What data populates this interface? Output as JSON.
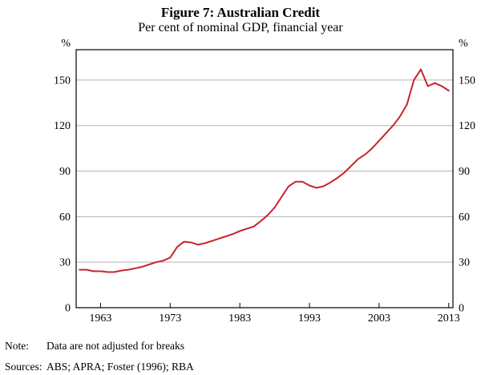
{
  "figure": {
    "title": "Figure 7: Australian Credit",
    "subtitle": "Per cent of nominal GDP, financial year"
  },
  "footer": {
    "note_label": "Note:",
    "note_text": "Data are not adjusted for breaks",
    "sources_label": "Sources:",
    "sources_text": "ABS; APRA; Foster (1996); RBA"
  },
  "chart_data": {
    "type": "line",
    "title": "Figure 7: Australian Credit",
    "subtitle": "Per cent of nominal GDP, financial year",
    "unit": "%",
    "xlabel": "Financial year",
    "ylabel": "Per cent of nominal GDP",
    "xlim": [
      1959.5,
      2013.6
    ],
    "ylim": [
      0,
      170
    ],
    "xticks": [
      1963,
      1973,
      1983,
      1993,
      2003,
      2013
    ],
    "yticks": [
      0,
      30,
      60,
      90,
      120,
      150
    ],
    "grid": "horizontal",
    "legend": "none",
    "line_color": "#c8232c",
    "grid_color": "#b3b3b3",
    "x": [
      1960,
      1961,
      1962,
      1963,
      1964,
      1965,
      1966,
      1967,
      1968,
      1969,
      1970,
      1971,
      1972,
      1973,
      1974,
      1975,
      1976,
      1977,
      1978,
      1979,
      1980,
      1981,
      1982,
      1983,
      1984,
      1985,
      1986,
      1987,
      1988,
      1989,
      1990,
      1991,
      1992,
      1993,
      1994,
      1995,
      1996,
      1997,
      1998,
      1999,
      2000,
      2001,
      2002,
      2003,
      2004,
      2005,
      2006,
      2007,
      2008,
      2009,
      2010,
      2011,
      2012,
      2013
    ],
    "series": [
      {
        "name": "Australian credit (per cent of nominal GDP)",
        "color": "#c8232c",
        "values": [
          25,
          25,
          24,
          24,
          23.5,
          23.5,
          24.5,
          25,
          26,
          27,
          28.5,
          30,
          31,
          33,
          40,
          43.5,
          43,
          41.5,
          42.5,
          44,
          45.5,
          47,
          48.5,
          50.5,
          52,
          53.5,
          57,
          61,
          66,
          73,
          80,
          83,
          83,
          80.5,
          79,
          80,
          82.5,
          85.5,
          89,
          93.5,
          98,
          101,
          105,
          110,
          115,
          120,
          126,
          134,
          150,
          157,
          146,
          148,
          146,
          143
        ]
      }
    ]
  }
}
